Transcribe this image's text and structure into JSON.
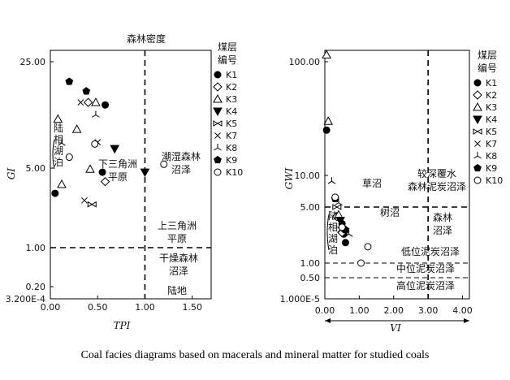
{
  "caption": "Coal facies diagrams based on macerals and mineral matter for studied coals",
  "legend": {
    "title_line1": "煤层",
    "title_line2": "编号",
    "items": [
      {
        "name": "K1",
        "symbol": "filled-circle"
      },
      {
        "name": "K2",
        "symbol": "open-diamond"
      },
      {
        "name": "K3",
        "symbol": "open-triangle"
      },
      {
        "name": "K4",
        "symbol": "filled-down-triangle"
      },
      {
        "name": "K5",
        "symbol": "bowtie"
      },
      {
        "name": "K7",
        "symbol": "cross"
      },
      {
        "name": "K8",
        "symbol": "tri-star"
      },
      {
        "name": "K9",
        "symbol": "filled-pentagon"
      },
      {
        "name": "K10",
        "symbol": "open-circle"
      }
    ]
  },
  "chart_data": [
    {
      "type": "scatter",
      "title": "森林密度",
      "xlabel": "TPI",
      "ylabel": "GI",
      "x_ticks": [
        "0.00",
        "0.50",
        "1.00",
        "1.50"
      ],
      "y_ticks": [
        "25.00",
        "5.00",
        "1.00",
        "0.20",
        "3.200E-4"
      ],
      "y_scale": "log",
      "xlim": [
        0,
        1.7
      ],
      "ylim": [
        0.0032,
        30
      ],
      "vline": 1.0,
      "hline": 1.0,
      "annotations": [
        {
          "text": "陆相湖泊",
          "vertical": true
        },
        {
          "text": "下三角洲平原"
        },
        {
          "text": "潮湿森林沼泽"
        },
        {
          "text": "上三角洲平原"
        },
        {
          "text": "干燥森林沼泽"
        },
        {
          "text": "陆地"
        }
      ],
      "series": [
        {
          "name": "K1",
          "points": [
            [
              0.05,
              3.0
            ],
            [
              0.55,
              4.6
            ],
            [
              0.58,
              13.0
            ]
          ]
        },
        {
          "name": "K2",
          "points": [
            [
              0.4,
              13.5
            ],
            [
              0.58,
              3.8
            ]
          ]
        },
        {
          "name": "K3",
          "points": [
            [
              0.08,
              10.5
            ],
            [
              0.12,
              3.6
            ],
            [
              0.28,
              9.0
            ],
            [
              0.48,
              13.5
            ],
            [
              0.42,
              4.9
            ]
          ]
        },
        {
          "name": "K4",
          "points": [
            [
              0.68,
              6.7
            ],
            [
              1.0,
              4.6
            ]
          ]
        },
        {
          "name": "K5",
          "points": [
            [
              0.44,
              2.4
            ]
          ]
        },
        {
          "name": "K7",
          "points": [
            [
              0.32,
              13.5
            ],
            [
              0.36,
              2.6
            ],
            [
              0.5,
              7.4
            ]
          ]
        },
        {
          "name": "K8",
          "points": [
            [
              0.12,
              7.3
            ],
            [
              0.48,
              11.2
            ]
          ]
        },
        {
          "name": "K9",
          "points": [
            [
              0.2,
              18.5
            ],
            [
              0.38,
              16.0
            ]
          ]
        },
        {
          "name": "K10",
          "points": [
            [
              0.2,
              5.9
            ],
            [
              0.47,
              7.2
            ],
            [
              1.2,
              5.3
            ]
          ]
        }
      ]
    },
    {
      "type": "scatter",
      "title": "",
      "xlabel": "VI",
      "ylabel": "GWI",
      "x_ticks": [
        "0.00",
        "1.00",
        "2.00",
        "3.00",
        "4.00"
      ],
      "y_ticks": [
        "100.00",
        "10.00",
        "5.00",
        "1.00",
        "0.50",
        "1.000E-5"
      ],
      "y_scale": "log",
      "xlim": [
        0,
        4.2
      ],
      "ylim": [
        0.3,
        150
      ],
      "vline": 3.0,
      "hlines": [
        5.0,
        1.0,
        0.5
      ],
      "annotations": [
        {
          "text": "草沼"
        },
        {
          "text": "较深覆水森林泥炭沼泽"
        },
        {
          "text": "森林沼泽"
        },
        {
          "text": "树沼"
        },
        {
          "text": "低位泥炭沼泽"
        },
        {
          "text": "中位泥炭沼泽"
        },
        {
          "text": "高位泥炭沼泽"
        },
        {
          "text": "陆相湖泊",
          "vertical": true
        }
      ],
      "series": [
        {
          "name": "K1",
          "points": [
            [
              0.05,
              25.0
            ],
            [
              0.5,
              3.1
            ],
            [
              0.55,
              2.3
            ],
            [
              0.6,
              1.8
            ]
          ]
        },
        {
          "name": "K2",
          "points": [
            [
              0.35,
              3.8
            ],
            [
              0.5,
              2.4
            ]
          ]
        },
        {
          "name": "K3",
          "points": [
            [
              0.05,
              115.0
            ],
            [
              0.1,
              30.0
            ],
            [
              0.4,
              4.0
            ]
          ]
        },
        {
          "name": "K4",
          "points": [
            [
              0.45,
              3.4
            ]
          ]
        },
        {
          "name": "K5",
          "points": [
            [
              0.35,
              5.0
            ]
          ]
        },
        {
          "name": "K7",
          "points": [
            [
              0.45,
              2.6
            ]
          ]
        },
        {
          "name": "K8",
          "points": [
            [
              0.2,
              8.8
            ],
            [
              0.7,
              2.3
            ],
            [
              0.4,
              5.5
            ]
          ]
        },
        {
          "name": "K9",
          "points": [
            [
              0.3,
              6.0
            ],
            [
              0.6,
              2.6
            ]
          ]
        },
        {
          "name": "K10",
          "points": [
            [
              0.3,
              6.2
            ],
            [
              0.5,
              2.8
            ],
            [
              1.05,
              1.0
            ],
            [
              1.25,
              1.6
            ]
          ]
        }
      ]
    }
  ]
}
